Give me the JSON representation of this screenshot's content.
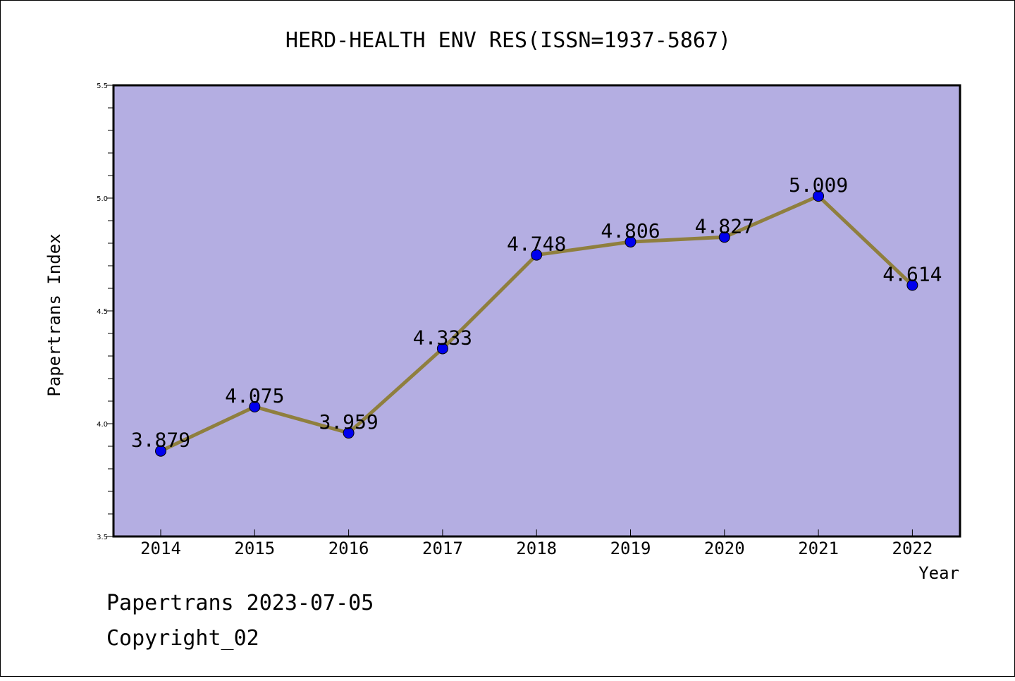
{
  "chart_data": {
    "type": "line",
    "title": "HERD-HEALTH ENV RES(ISSN=1937-5867)",
    "xlabel": "Year",
    "ylabel": "Papertrans Index",
    "categories": [
      "2014",
      "2015",
      "2016",
      "2017",
      "2018",
      "2019",
      "2020",
      "2021",
      "2022"
    ],
    "series": [
      {
        "values": [
          3.879,
          4.075,
          3.959,
          4.333,
          4.748,
          4.806,
          4.827,
          5.009,
          4.614
        ],
        "labels": [
          "3.879",
          "4.075",
          "3.959",
          "4.333",
          "4.748",
          "4.806",
          "4.827",
          "5.009",
          "4.614"
        ]
      }
    ],
    "yticks": [
      "3.5",
      "4.0",
      "4.5",
      "5.0",
      "5.5"
    ],
    "ylim": [
      3.5,
      5.5
    ],
    "grid": false,
    "colors": {
      "plot_background": "#b4aee2",
      "line": "#8f7f3e",
      "marker": "#0000ee"
    }
  },
  "footer": {
    "line1": "Papertrans 2023-07-05",
    "line2": "Copyright_02"
  }
}
